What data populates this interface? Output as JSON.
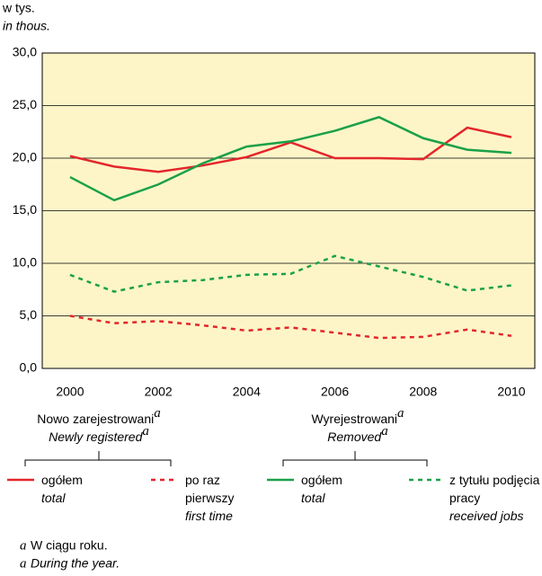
{
  "chart_data": {
    "type": "line",
    "unit_label": "w tys.",
    "unit_label_en": "in thous.",
    "x": [
      2000,
      2001,
      2002,
      2003,
      2004,
      2005,
      2006,
      2007,
      2008,
      2009,
      2010
    ],
    "xlim": [
      1999.37,
      2010.53
    ],
    "xticks": [
      2000,
      2002,
      2004,
      2006,
      2008,
      2010
    ],
    "ylim": [
      0,
      30
    ],
    "yticks": [
      {
        "value": 0,
        "label": "0,0"
      },
      {
        "value": 5,
        "label": "5,0"
      },
      {
        "value": 10,
        "label": "10,0"
      },
      {
        "value": 15,
        "label": "15,0"
      },
      {
        "value": 20,
        "label": "20,0"
      },
      {
        "value": 25,
        "label": "25,0"
      },
      {
        "value": 30,
        "label": "30,0"
      }
    ],
    "grid": true,
    "background": "#fdf5c8",
    "legend_groups": [
      {
        "title": "Nowo zarejestrowani",
        "title_en": "Newly registered"
      },
      {
        "title": "Wyrejestrowani",
        "title_en": "Removed"
      }
    ],
    "series": [
      {
        "name": "ogółem",
        "name_en": "total",
        "group": 0,
        "color": "#e3262b",
        "dashed": false,
        "values": [
          20.2,
          19.2,
          18.7,
          19.3,
          20.1,
          21.5,
          20.0,
          20.0,
          19.9,
          22.9,
          22.0
        ]
      },
      {
        "name": "po raz pierwszy",
        "name_en": "first time",
        "group": 0,
        "color": "#e3262b",
        "dashed": true,
        "values": [
          5.0,
          4.3,
          4.5,
          4.1,
          3.6,
          3.9,
          3.4,
          2.9,
          3.0,
          3.7,
          3.1
        ]
      },
      {
        "name": "ogółem",
        "name_en": "total",
        "group": 1,
        "color": "#1aa048",
        "dashed": false,
        "values": [
          18.2,
          16.0,
          17.5,
          19.5,
          21.1,
          21.6,
          22.6,
          23.9,
          21.9,
          20.8,
          20.5
        ]
      },
      {
        "name": "z tytułu podjęcia pracy",
        "name_en": "received jobs",
        "group": 1,
        "color": "#1aa048",
        "dashed": true,
        "values": [
          8.9,
          7.3,
          8.2,
          8.4,
          8.9,
          9.0,
          10.7,
          9.7,
          8.7,
          7.4,
          7.9
        ]
      }
    ],
    "footnote": {
      "marker": "a",
      "text": "W ciągu roku.",
      "text_en": "During the year."
    }
  }
}
